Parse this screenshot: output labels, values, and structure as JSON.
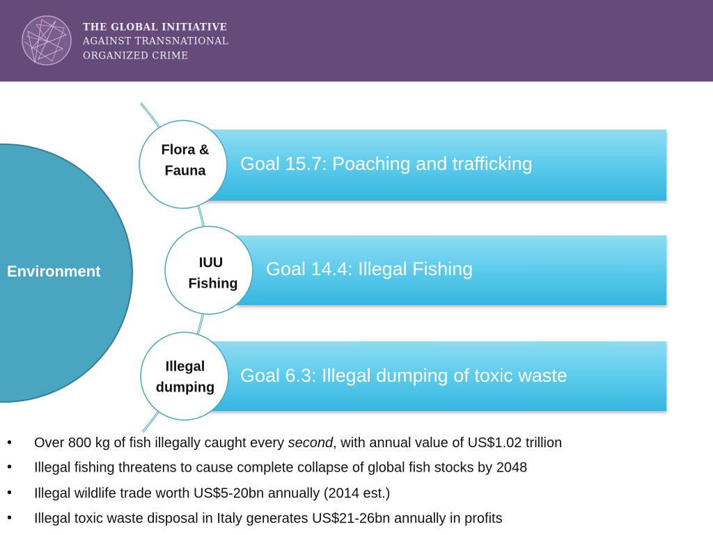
{
  "header": {
    "title_lines": [
      "THE GLOBAL INITIATIVE",
      "AGAINST TRANSNATIONAL",
      "ORGANIZED CRIME"
    ]
  },
  "center": {
    "label": "Environment"
  },
  "items": [
    {
      "circle_lines": [
        "Flora &",
        "Fauna"
      ],
      "goal": "Goal 15.7: Poaching and trafficking"
    },
    {
      "circle_lines": [
        "IUU",
        "Fishing"
      ],
      "goal": "Goal 14.4: Illegal Fishing"
    },
    {
      "circle_lines": [
        "Illegal",
        "dumping"
      ],
      "goal": "Goal 6.3:  Illegal dumping of toxic waste"
    }
  ],
  "bullets": [
    {
      "parts": [
        "Over 800 kg of fish illegally caught every ",
        "second",
        ", with annual value of US$1.02 trillion"
      ]
    },
    {
      "parts": [
        "Illegal fishing threatens to cause complete collapse of global fish stocks by 2048"
      ]
    },
    {
      "parts": [
        "Illegal wildlife trade worth US$5-20bn annually (2014 est.)"
      ]
    },
    {
      "parts": [
        "Illegal toxic waste disposal in Italy generates US$21-26bn annually in profits"
      ]
    }
  ]
}
